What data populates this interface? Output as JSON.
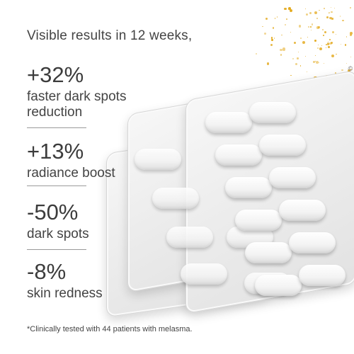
{
  "headline": "Visible results in 12 weeks,",
  "stats": [
    {
      "value": "+32%",
      "description": "faster dark spots reduction"
    },
    {
      "value": "+13%",
      "description": "radiance boost"
    },
    {
      "value": "-50%",
      "description": "dark spots"
    },
    {
      "value": "-8%",
      "description": "skin redness"
    }
  ],
  "footnote": "*Clinically tested with 44 patients with melasma.",
  "copyright": "©",
  "colors": {
    "background": "#ffffff",
    "text": "#3a3a3a",
    "sparkle": "#e3aa1f",
    "blister": "#ebebeb"
  },
  "icons": [
    "sparkle-dust",
    "blister-pack-pills"
  ]
}
